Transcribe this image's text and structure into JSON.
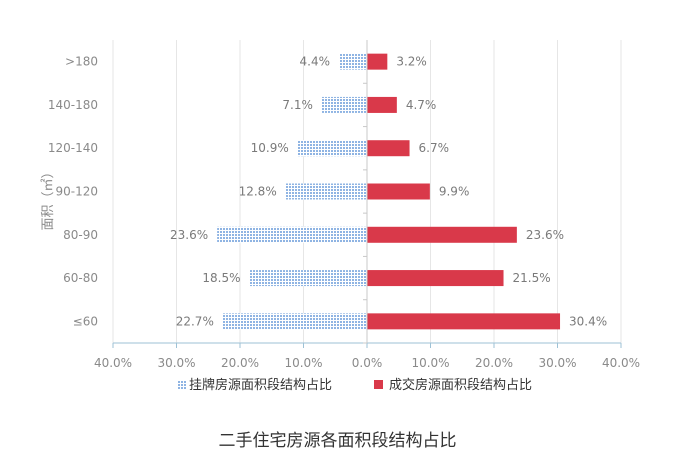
{
  "caption": "二手住宅房源各面积段结构占比",
  "chart_data": {
    "type": "bar",
    "orientation": "horizontal-diverging",
    "ylabel": "面积（㎡）",
    "categories": [
      "≤60",
      "60-80",
      "80-90",
      "90-120",
      "120-140",
      "140-180",
      ">180"
    ],
    "series": [
      {
        "name": "挂牌房源面积段结构占比",
        "values": [
          22.7,
          18.5,
          23.6,
          12.8,
          10.9,
          7.1,
          4.4
        ],
        "labels": [
          "22.7%",
          "18.5%",
          "23.6%",
          "12.8%",
          "10.9%",
          "7.1%",
          "4.4%"
        ],
        "color": "#8fb4e3",
        "pattern": "dotted"
      },
      {
        "name": "成交房源面积段结构占比",
        "values": [
          30.4,
          21.5,
          23.6,
          9.9,
          6.7,
          4.7,
          3.2
        ],
        "labels": [
          "30.4%",
          "21.5%",
          "23.6%",
          "9.9%",
          "6.7%",
          "4.7%",
          "3.2%"
        ],
        "color": "#d9394a",
        "pattern": "solid"
      }
    ],
    "xticks": [
      "40.0%",
      "30.0%",
      "20.0%",
      "10.0%",
      "0.0%",
      "10.0%",
      "20.0%",
      "30.0%",
      "40.0%"
    ],
    "xlim": [
      -40,
      40
    ],
    "legend_position": "bottom",
    "grid": "vertical"
  }
}
